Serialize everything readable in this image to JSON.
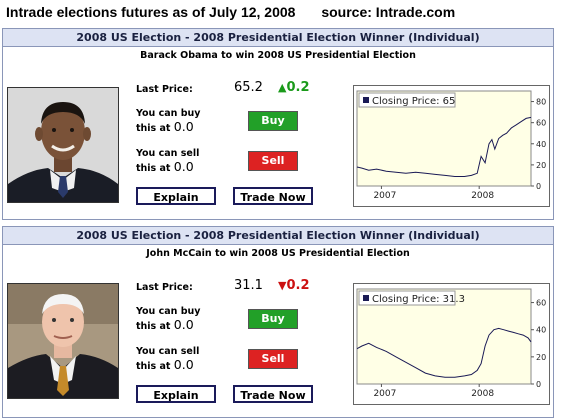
{
  "headline": {
    "title": "Intrade elections futures as of July 12, 2008",
    "source": "source: Intrade.com"
  },
  "labels": {
    "last_price": "Last Price:",
    "can_buy_1": "You can buy",
    "can_buy_2": "this at",
    "can_sell_1": "You can sell",
    "can_sell_2": "this at",
    "buy": "Buy",
    "sell": "Sell",
    "explain": "Explain",
    "trade_now": "Trade Now"
  },
  "panels": [
    {
      "header": "2008 US Election - 2008 Presidential Election Winner (Individual)",
      "subtitle": "Barack Obama to win 2008 US Presidential Election",
      "last_price": "65.2",
      "change": "0.2",
      "change_dir": "up",
      "buy_price": "0.0",
      "sell_price": "0.0",
      "photo": "portrait-barack-obama",
      "chart_title": "Closing Price: 65"
    },
    {
      "header": "2008 US Election - 2008 Presidential Election Winner (Individual)",
      "subtitle": "John McCain to win 2008 US Presidential Election",
      "last_price": "31.1",
      "change": "0.2",
      "change_dir": "down",
      "buy_price": "0.0",
      "sell_price": "0.0",
      "photo": "portrait-john-mccain",
      "chart_title": "Closing Price: 31.3"
    }
  ],
  "colors": {
    "up": "#1a9a1a",
    "down": "#cc1111",
    "buy": "#22a028",
    "sell": "#dd2222",
    "header_bg": "#dde3f3",
    "plot_bg": "#ffffe6"
  },
  "chart_data": [
    {
      "type": "line",
      "title": "Closing Price: 65",
      "x_ticks": [
        "2007",
        "2008"
      ],
      "y_ticks": [
        0,
        20,
        40,
        60,
        80
      ],
      "ylim": [
        0,
        90
      ],
      "xlim": [
        2006.75,
        2008.53
      ],
      "grid": false,
      "legend": "top-left",
      "series": [
        {
          "x": [
            2006.75,
            2006.8,
            2006.87,
            2006.95,
            2007.05,
            2007.15,
            2007.25,
            2007.35,
            2007.45,
            2007.55,
            2007.65,
            2007.75,
            2007.85,
            2007.92,
            2007.98,
            2008.02,
            2008.06,
            2008.1,
            2008.13,
            2008.16,
            2008.2,
            2008.24,
            2008.28,
            2008.33,
            2008.38,
            2008.43,
            2008.48,
            2008.53
          ],
          "values": [
            18,
            17,
            15,
            16,
            14,
            13,
            12,
            13,
            12,
            11,
            10,
            9,
            9,
            10,
            12,
            28,
            22,
            40,
            44,
            35,
            45,
            48,
            50,
            55,
            58,
            61,
            64,
            65
          ]
        }
      ]
    },
    {
      "type": "line",
      "title": "Closing Price: 31.3",
      "x_ticks": [
        "2007",
        "2008"
      ],
      "y_ticks": [
        0,
        20,
        40,
        60
      ],
      "ylim": [
        0,
        70
      ],
      "xlim": [
        2006.75,
        2008.53
      ],
      "grid": false,
      "legend": "top-left",
      "series": [
        {
          "x": [
            2006.75,
            2006.8,
            2006.87,
            2006.95,
            2007.05,
            2007.15,
            2007.25,
            2007.35,
            2007.45,
            2007.55,
            2007.65,
            2007.75,
            2007.85,
            2007.92,
            2007.98,
            2008.02,
            2008.06,
            2008.1,
            2008.15,
            2008.2,
            2008.25,
            2008.3,
            2008.35,
            2008.4,
            2008.45,
            2008.5,
            2008.53
          ],
          "values": [
            26,
            28,
            30,
            27,
            24,
            20,
            16,
            12,
            8,
            6,
            5,
            5,
            6,
            7,
            10,
            15,
            28,
            36,
            40,
            41,
            40,
            39,
            38,
            37,
            36,
            34,
            31
          ]
        }
      ]
    }
  ]
}
